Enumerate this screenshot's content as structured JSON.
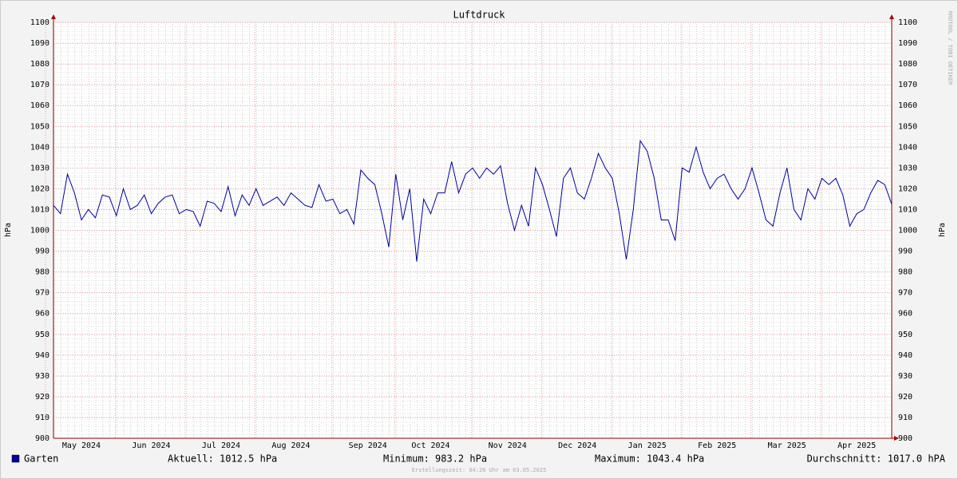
{
  "chart_data": {
    "type": "line",
    "title": "Luftdruck",
    "y_label": "hPa",
    "side_note": "RRDTOOL / TOBI OETIKER",
    "footer": "Erstellungszeit: 04:26 Uhr am 03.05.2025",
    "stats": [
      "Aktuell: 1012.5 hPa",
      "Minimum: 983.2 hPa",
      "Maximum: 1043.4 hPa",
      "Durchschnitt: 1017.0 hPA"
    ],
    "ylim": [
      900,
      1100
    ],
    "yticks": [
      900,
      910,
      920,
      930,
      940,
      950,
      960,
      970,
      980,
      990,
      1000,
      1010,
      1020,
      1030,
      1040,
      1050,
      1060,
      1070,
      1080,
      1090,
      1100
    ],
    "grid": true,
    "categories": [
      null,
      null,
      null,
      null,
      "May 2024",
      null,
      null,
      null,
      null,
      null,
      null,
      null,
      null,
      null,
      "Jun 2024",
      null,
      null,
      null,
      null,
      null,
      null,
      null,
      null,
      null,
      "Jul 2024",
      null,
      null,
      null,
      null,
      null,
      null,
      null,
      null,
      null,
      "Aug 2024",
      null,
      null,
      null,
      null,
      null,
      null,
      null,
      null,
      null,
      null,
      "Sep 2024",
      null,
      null,
      null,
      null,
      null,
      null,
      null,
      null,
      "Oct 2024",
      null,
      null,
      null,
      null,
      null,
      null,
      null,
      null,
      null,
      null,
      "Nov 2024",
      null,
      null,
      null,
      null,
      null,
      null,
      null,
      null,
      null,
      "Dec 2024",
      null,
      null,
      null,
      null,
      null,
      null,
      null,
      null,
      null,
      "Jan 2025",
      null,
      null,
      null,
      null,
      null,
      null,
      null,
      null,
      null,
      "Feb 2025",
      null,
      null,
      null,
      null,
      null,
      null,
      null,
      null,
      null,
      "Mar 2025",
      null,
      null,
      null,
      null,
      null,
      null,
      null,
      null,
      null,
      "Apr 2025",
      null,
      null,
      null,
      null,
      null
    ],
    "series": [
      {
        "name": "Garten",
        "color": "#0000a0",
        "values": [
          1012,
          1008,
          1027,
          1018,
          1005,
          1010,
          1006,
          1017,
          1016,
          1007,
          1020,
          1010,
          1012,
          1017,
          1008,
          1013,
          1016,
          1017,
          1008,
          1010,
          1009,
          1002,
          1014,
          1013,
          1009,
          1021,
          1007,
          1017,
          1012,
          1020,
          1012,
          1014,
          1016,
          1012,
          1018,
          1015,
          1012,
          1011,
          1022,
          1014,
          1015,
          1008,
          1010,
          1003,
          1029,
          1025,
          1022,
          1008,
          992,
          1027,
          1005,
          1020,
          985,
          1015,
          1008,
          1018,
          1018,
          1033,
          1018,
          1027,
          1030,
          1025,
          1030,
          1027,
          1031,
          1013,
          1000,
          1012,
          1002,
          1030,
          1022,
          1010,
          997,
          1025,
          1030,
          1018,
          1015,
          1025,
          1037,
          1030,
          1025,
          1008,
          986,
          1010,
          1043,
          1038,
          1025,
          1005,
          1005,
          995,
          1030,
          1028,
          1040,
          1028,
          1020,
          1025,
          1027,
          1020,
          1015,
          1020,
          1030,
          1018,
          1005,
          1002,
          1018,
          1030,
          1010,
          1005,
          1020,
          1015,
          1025,
          1022,
          1025,
          1017,
          1002,
          1008,
          1010,
          1018,
          1024,
          1022,
          1012.5
        ]
      }
    ]
  }
}
